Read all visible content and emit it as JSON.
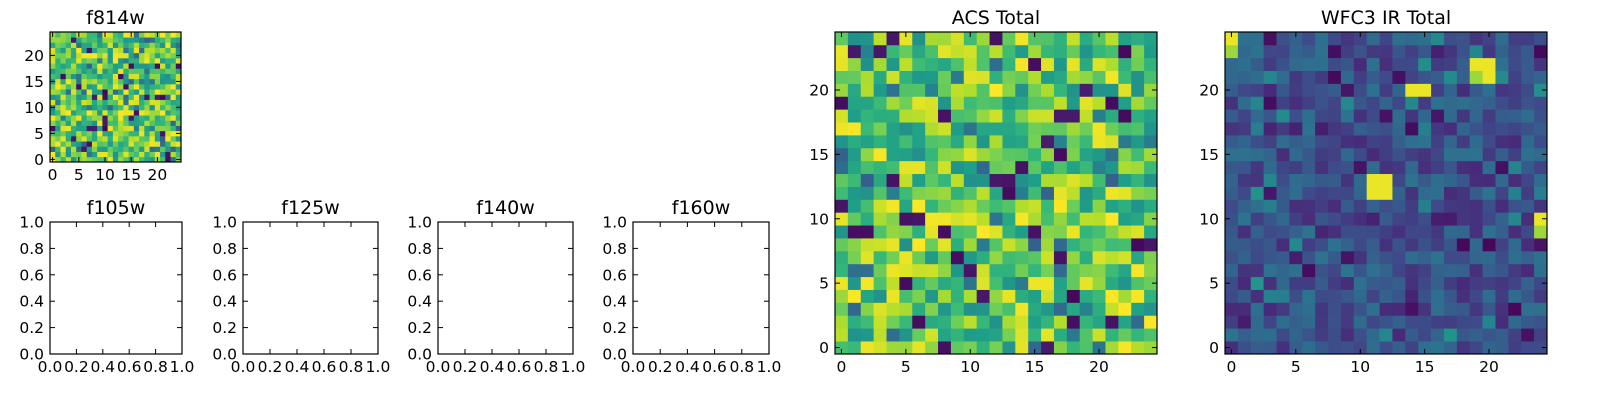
{
  "chart_data": [
    {
      "id": "f814w",
      "type": "heatmap",
      "title": "f814w",
      "xlim": [
        -0.5,
        24.5
      ],
      "ylim": [
        -0.5,
        24.5
      ],
      "xticks": [
        0,
        5,
        10,
        15,
        20
      ],
      "yticks": [
        0,
        5,
        10,
        15,
        20
      ],
      "colormap": "viridis",
      "grid_size": [
        25,
        25
      ],
      "distribution": "random noise, mostly green-yellow (high values) with scattered dark purple cells"
    },
    {
      "id": "f105w",
      "type": "heatmap",
      "title": "f105w",
      "empty": true,
      "xlim": [
        0,
        1
      ],
      "ylim": [
        0,
        1
      ],
      "xticks": [
        "0.0",
        "0.2",
        "0.4",
        "0.6",
        "0.8",
        "1.0"
      ],
      "yticks": [
        "0.0",
        "0.2",
        "0.4",
        "0.6",
        "0.8",
        "1.0"
      ]
    },
    {
      "id": "f125w",
      "type": "heatmap",
      "title": "f125w",
      "empty": true,
      "xlim": [
        0,
        1
      ],
      "ylim": [
        0,
        1
      ],
      "xticks": [
        "0.0",
        "0.2",
        "0.4",
        "0.6",
        "0.8",
        "1.0"
      ],
      "yticks": [
        "0.0",
        "0.2",
        "0.4",
        "0.6",
        "0.8",
        "1.0"
      ]
    },
    {
      "id": "f140w",
      "type": "heatmap",
      "title": "f140w",
      "empty": true,
      "xlim": [
        0,
        1
      ],
      "ylim": [
        0,
        1
      ],
      "xticks": [
        "0.0",
        "0.2",
        "0.4",
        "0.6",
        "0.8",
        "1.0"
      ],
      "yticks": [
        "0.0",
        "0.2",
        "0.4",
        "0.6",
        "0.8",
        "1.0"
      ]
    },
    {
      "id": "f160w",
      "type": "heatmap",
      "title": "f160w",
      "empty": true,
      "xlim": [
        0,
        1
      ],
      "ylim": [
        0,
        1
      ],
      "xticks": [
        "0.0",
        "0.2",
        "0.4",
        "0.6",
        "0.8",
        "1.0"
      ],
      "yticks": [
        "0.0",
        "0.2",
        "0.4",
        "0.6",
        "0.8",
        "1.0"
      ]
    },
    {
      "id": "acs_total",
      "type": "heatmap",
      "title": "ACS Total",
      "xlim": [
        -0.5,
        24.5
      ],
      "ylim": [
        -0.5,
        24.5
      ],
      "xticks": [
        0,
        5,
        10,
        15,
        20
      ],
      "yticks": [
        0,
        5,
        10,
        15,
        20
      ],
      "colormap": "viridis",
      "grid_size": [
        25,
        25
      ],
      "distribution": "random noise, mostly green-yellow (high values) with scattered dark purple cells"
    },
    {
      "id": "wfc3_ir_total",
      "type": "heatmap",
      "title": "WFC3 IR Total",
      "xlim": [
        -0.5,
        24.5
      ],
      "ylim": [
        -0.5,
        24.5
      ],
      "xticks": [
        0,
        5,
        10,
        15,
        20
      ],
      "yticks": [
        0,
        5,
        10,
        15,
        20
      ],
      "colormap": "viridis",
      "grid_size": [
        25,
        25
      ],
      "distribution": "random noise, mostly dark blue-purple (low values)",
      "bright_pixels": [
        {
          "x": 0,
          "y": 24
        },
        {
          "x": 0,
          "y": 23
        },
        {
          "x": 19,
          "y": 22
        },
        {
          "x": 20,
          "y": 22
        },
        {
          "x": 20,
          "y": 21
        },
        {
          "x": 19,
          "y": 21
        },
        {
          "x": 14,
          "y": 20
        },
        {
          "x": 15,
          "y": 20
        },
        {
          "x": 11,
          "y": 13
        },
        {
          "x": 12,
          "y": 13
        },
        {
          "x": 11,
          "y": 12
        },
        {
          "x": 12,
          "y": 12
        },
        {
          "x": 24,
          "y": 10
        },
        {
          "x": 24,
          "y": 9
        }
      ]
    }
  ]
}
